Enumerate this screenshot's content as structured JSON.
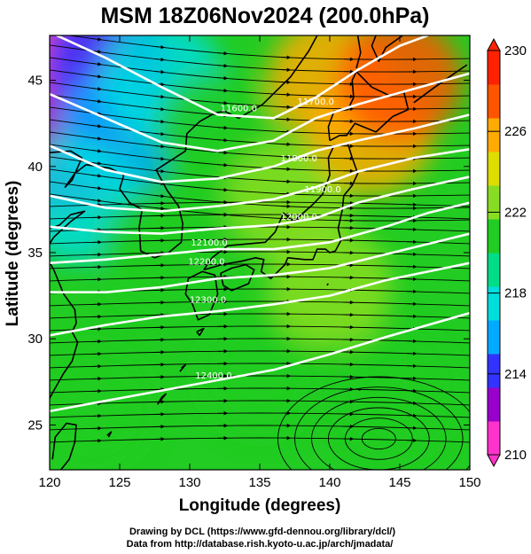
{
  "chart_data": {
    "type": "heatmap",
    "title": "MSM 18Z06Nov2024 (200.0hPa)",
    "xlabel": "Longitude (degrees)",
    "ylabel": "Latitude  (degrees)",
    "xlim": [
      120,
      150
    ],
    "ylim": [
      22.4,
      47.6
    ],
    "x_ticks": [
      120,
      125,
      130,
      135,
      140,
      145,
      150
    ],
    "y_ticks": [
      25,
      30,
      35,
      40,
      45
    ],
    "colorbar": {
      "ticks": [
        210,
        214,
        218,
        222,
        226,
        230
      ],
      "range": [
        210,
        230
      ],
      "extend": "both",
      "colors": [
        "#ff33cc",
        "#9900cc",
        "#3333ff",
        "#00aaff",
        "#00dddd",
        "#00dd88",
        "#22cc22",
        "#88dd22",
        "#dddd00",
        "#ffaa00",
        "#ff5500",
        "#ff2200"
      ]
    },
    "temperature_field_samples": [
      {
        "lon": 121,
        "lat": 46,
        "value": 211
      },
      {
        "lon": 121,
        "lat": 41,
        "value": 213
      },
      {
        "lon": 124,
        "lat": 46,
        "value": 214
      },
      {
        "lon": 125,
        "lat": 42,
        "value": 216
      },
      {
        "lon": 122,
        "lat": 38,
        "value": 218
      },
      {
        "lon": 128,
        "lat": 45,
        "value": 218
      },
      {
        "lon": 128,
        "lat": 35,
        "value": 220
      },
      {
        "lon": 132,
        "lat": 42,
        "value": 221
      },
      {
        "lon": 135,
        "lat": 28,
        "value": 221
      },
      {
        "lon": 137,
        "lat": 38,
        "value": 222
      },
      {
        "lon": 140,
        "lat": 45,
        "value": 226
      },
      {
        "lon": 143,
        "lat": 42,
        "value": 226
      },
      {
        "lon": 145,
        "lat": 45,
        "value": 227
      },
      {
        "lon": 140,
        "lat": 33,
        "value": 222
      },
      {
        "lon": 145,
        "lat": 27,
        "value": 221
      },
      {
        "lon": 123,
        "lat": 26,
        "value": 221
      }
    ],
    "contour_labels": [
      "11600.0",
      "11700.0",
      "11800.0",
      "11900.0",
      "12000.0",
      "12100.0",
      "12200.0",
      "12300.0",
      "12400.0"
    ],
    "colors": {
      "contour": "#ffffff",
      "coast": "#000000",
      "streamline": "#000000"
    }
  },
  "credits": {
    "line1": "Drawing by DCL (https://www.gfd-dennou.org/library/dcl/)",
    "line2": "Data from http://database.rish.kyoto-u.ac.jp/arch/jmadata/"
  }
}
